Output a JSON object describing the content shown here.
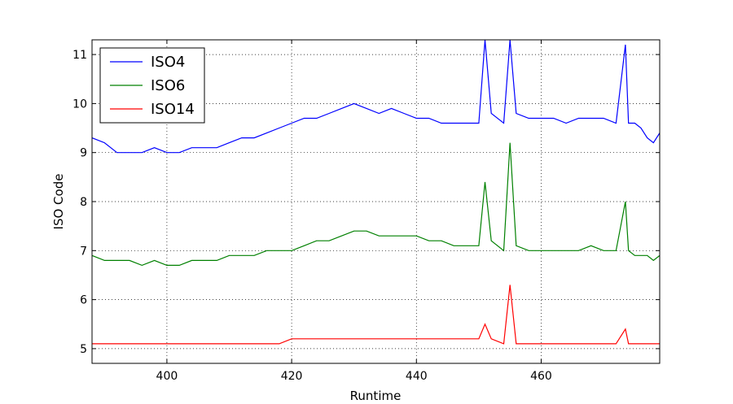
{
  "chart_data": {
    "type": "line",
    "xlabel": "Runtime",
    "ylabel": "ISO Code",
    "xlim": [
      388,
      479
    ],
    "ylim": [
      4.7,
      11.3
    ],
    "xticks": [
      400,
      420,
      440,
      460
    ],
    "yticks": [
      5,
      6,
      7,
      8,
      9,
      10,
      11
    ],
    "x_tick_labels": [
      "400",
      "420",
      "440",
      "460"
    ],
    "y_tick_labels": [
      "5",
      "6",
      "7",
      "8",
      "9",
      "10",
      "11"
    ],
    "grid": true,
    "legend_placement": "top-left",
    "series": [
      {
        "name": "ISO4",
        "color": "#0000ff",
        "x": [
          388,
          390,
          392,
          394,
          396,
          398,
          400,
          402,
          404,
          406,
          408,
          410,
          412,
          414,
          416,
          418,
          420,
          422,
          424,
          426,
          428,
          430,
          432,
          434,
          436,
          438,
          440,
          442,
          444,
          446,
          448,
          450,
          451,
          452,
          454,
          455,
          456,
          458,
          460,
          462,
          464,
          466,
          468,
          470,
          472,
          473.5,
          474,
          475,
          476,
          477,
          478,
          479
        ],
        "values": [
          9.3,
          9.2,
          9.0,
          9.0,
          9.0,
          9.1,
          9.0,
          9.0,
          9.1,
          9.1,
          9.1,
          9.2,
          9.3,
          9.3,
          9.4,
          9.5,
          9.6,
          9.7,
          9.7,
          9.8,
          9.9,
          10.0,
          9.9,
          9.8,
          9.9,
          9.8,
          9.7,
          9.7,
          9.6,
          9.6,
          9.6,
          9.6,
          11.3,
          9.8,
          9.6,
          11.3,
          9.8,
          9.7,
          9.7,
          9.7,
          9.6,
          9.7,
          9.7,
          9.7,
          9.6,
          11.2,
          9.6,
          9.6,
          9.5,
          9.3,
          9.2,
          9.4
        ]
      },
      {
        "name": "ISO6",
        "color": "#008000",
        "x": [
          388,
          390,
          392,
          394,
          396,
          398,
          400,
          402,
          404,
          406,
          408,
          410,
          412,
          414,
          416,
          418,
          420,
          422,
          424,
          426,
          428,
          430,
          432,
          434,
          436,
          438,
          440,
          442,
          444,
          446,
          448,
          450,
          451,
          452,
          454,
          455,
          456,
          458,
          460,
          462,
          464,
          466,
          468,
          470,
          472,
          473.5,
          474,
          475,
          476,
          477,
          478,
          479
        ],
        "values": [
          6.9,
          6.8,
          6.8,
          6.8,
          6.7,
          6.8,
          6.7,
          6.7,
          6.8,
          6.8,
          6.8,
          6.9,
          6.9,
          6.9,
          7.0,
          7.0,
          7.0,
          7.1,
          7.2,
          7.2,
          7.3,
          7.4,
          7.4,
          7.3,
          7.3,
          7.3,
          7.3,
          7.2,
          7.2,
          7.1,
          7.1,
          7.1,
          8.4,
          7.2,
          7.0,
          9.2,
          7.1,
          7.0,
          7.0,
          7.0,
          7.0,
          7.0,
          7.1,
          7.0,
          7.0,
          8.0,
          7.0,
          6.9,
          6.9,
          6.9,
          6.8,
          6.9
        ]
      },
      {
        "name": "ISO14",
        "color": "#ff0000",
        "x": [
          388,
          390,
          392,
          394,
          396,
          398,
          400,
          402,
          404,
          406,
          408,
          410,
          412,
          414,
          416,
          418,
          420,
          422,
          424,
          426,
          428,
          430,
          432,
          434,
          436,
          438,
          440,
          442,
          444,
          446,
          448,
          450,
          451,
          452,
          454,
          455,
          456,
          458,
          460,
          462,
          464,
          466,
          468,
          470,
          472,
          473.5,
          474,
          475,
          476,
          477,
          478,
          479
        ],
        "values": [
          5.1,
          5.1,
          5.1,
          5.1,
          5.1,
          5.1,
          5.1,
          5.1,
          5.1,
          5.1,
          5.1,
          5.1,
          5.1,
          5.1,
          5.1,
          5.1,
          5.2,
          5.2,
          5.2,
          5.2,
          5.2,
          5.2,
          5.2,
          5.2,
          5.2,
          5.2,
          5.2,
          5.2,
          5.2,
          5.2,
          5.2,
          5.2,
          5.5,
          5.2,
          5.1,
          6.3,
          5.1,
          5.1,
          5.1,
          5.1,
          5.1,
          5.1,
          5.1,
          5.1,
          5.1,
          5.4,
          5.1,
          5.1,
          5.1,
          5.1,
          5.1,
          5.1
        ]
      }
    ]
  }
}
